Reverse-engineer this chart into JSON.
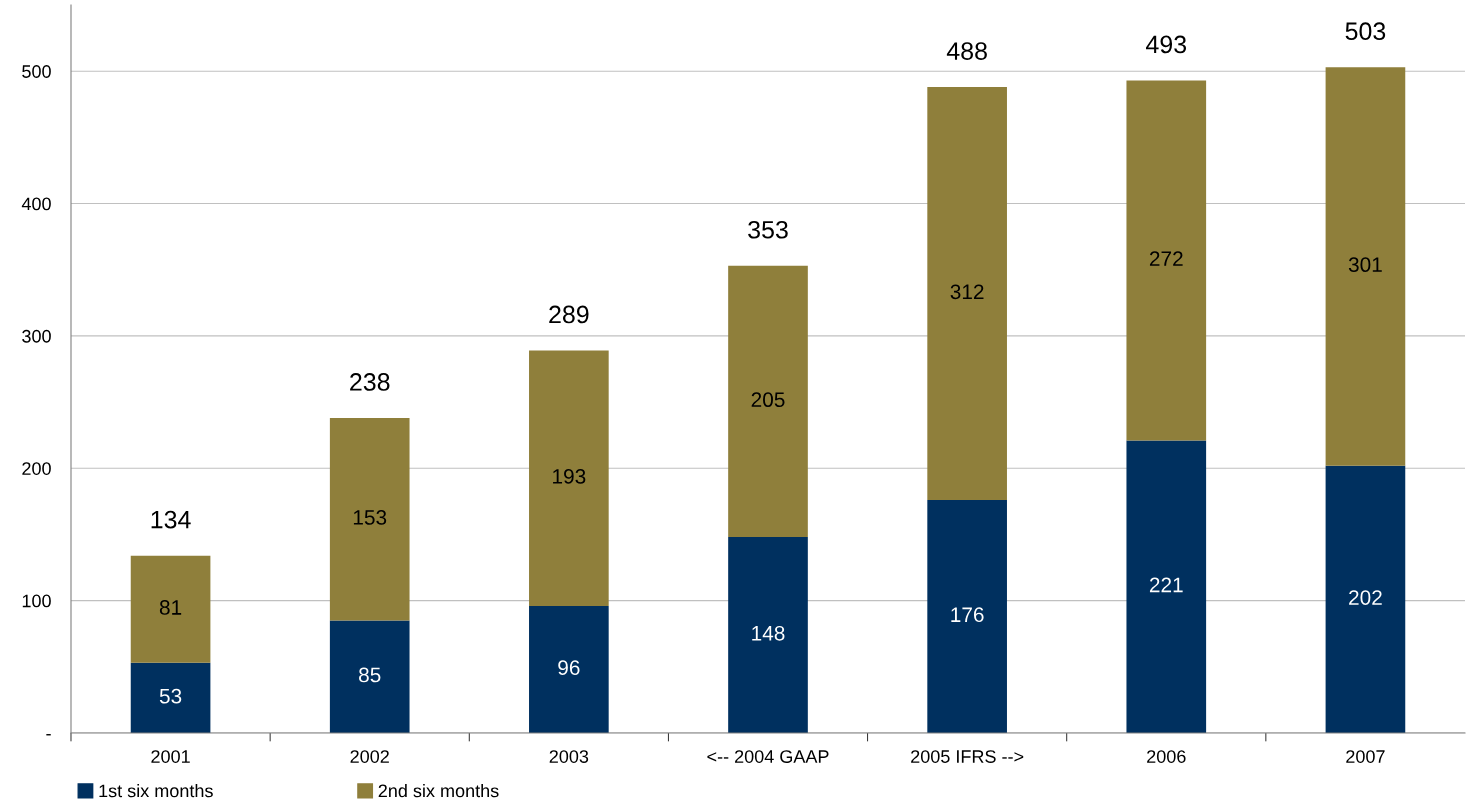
{
  "chart_data": {
    "type": "bar",
    "stacked": true,
    "categories": [
      "2001",
      "2002",
      "2003",
      "<-- 2004 GAAP",
      "2005 IFRS -->",
      "2006",
      "2007"
    ],
    "series": [
      {
        "name": "1st six months",
        "color": "#00305f",
        "values": [
          53,
          85,
          96,
          148,
          176,
          221,
          202
        ]
      },
      {
        "name": "2nd six months",
        "color": "#8f7f3b",
        "values": [
          81,
          153,
          193,
          205,
          312,
          272,
          301
        ]
      }
    ],
    "totals": [
      "134",
      "238",
      "289",
      "353",
      "488",
      "493",
      "503"
    ],
    "data_labels": true,
    "ylim": [
      0,
      550
    ],
    "yticks": [
      {
        "value": 0,
        "label": "-"
      },
      100,
      200,
      300,
      400,
      500
    ],
    "grid": "y",
    "legend": "bottom left"
  }
}
